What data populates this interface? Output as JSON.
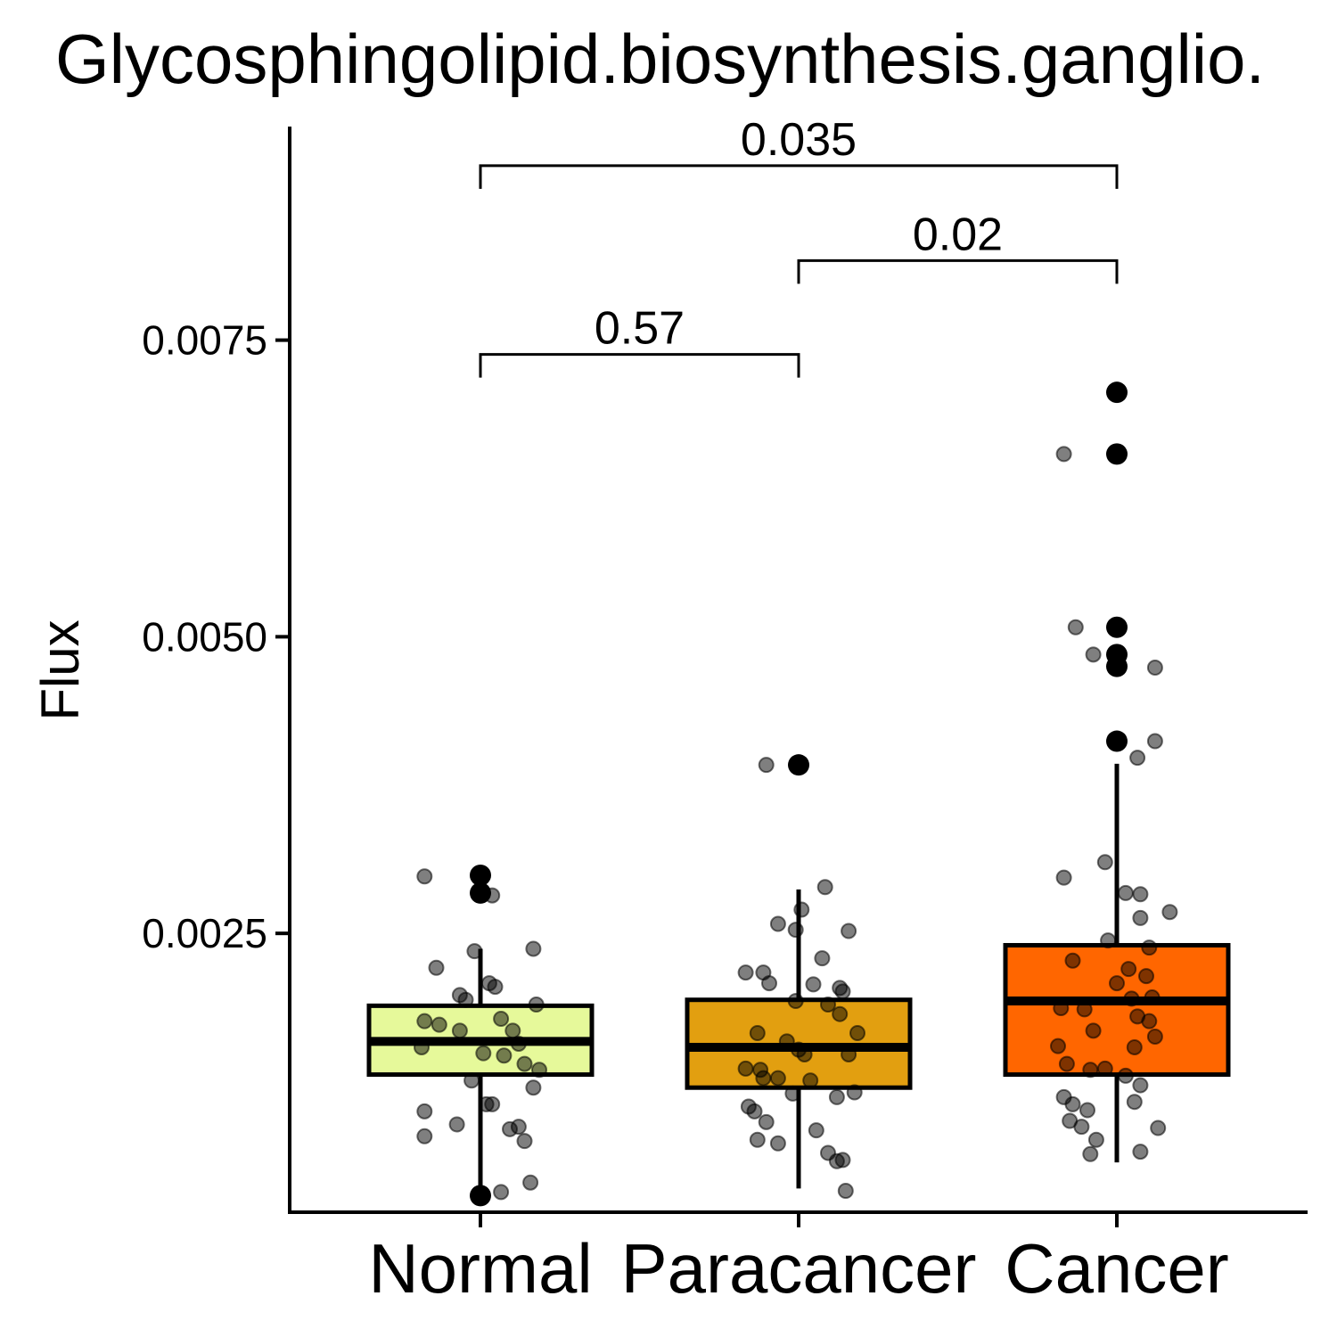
{
  "chart_data": {
    "type": "box",
    "title": "Glycosphingolipid.biosynthesis.ganglio.",
    "ylabel": "Flux",
    "xlabel": "",
    "ylim": [
      0.00015,
      0.0093
    ],
    "yticks": [
      {
        "value": 0.0025,
        "label": "0.0025"
      },
      {
        "value": 0.005,
        "label": "0.0050"
      },
      {
        "value": 0.0075,
        "label": "0.0075"
      }
    ],
    "categories": [
      "Normal",
      "Paracancer",
      "Cancer"
    ],
    "colors": {
      "Normal": "#e6f99a",
      "Paracancer": "#e29f10",
      "Cancer": "#ff6600"
    },
    "boxes": [
      {
        "name": "Normal",
        "q1": 0.00131,
        "median": 0.00159,
        "q3": 0.00189,
        "whisker_low": 0.00033,
        "whisker_high": 0.00237,
        "outliers": [
          0.00299,
          0.00284,
          0.00029
        ],
        "points": [
          [
            -0.19,
            0.00298
          ],
          [
            0.04,
            0.00282
          ],
          [
            0.18,
            0.00237
          ],
          [
            -0.02,
            0.00235
          ],
          [
            -0.15,
            0.00221
          ],
          [
            0.03,
            0.00208
          ],
          [
            0.05,
            0.00205
          ],
          [
            -0.07,
            0.00198
          ],
          [
            -0.05,
            0.00194
          ],
          [
            0.19,
            0.0019
          ],
          [
            -0.19,
            0.00176
          ],
          [
            -0.14,
            0.00173
          ],
          [
            0.07,
            0.00178
          ],
          [
            0.11,
            0.00168
          ],
          [
            -0.07,
            0.00168
          ],
          [
            -0.2,
            0.00154
          ],
          [
            0.13,
            0.00157
          ],
          [
            0.01,
            0.00149
          ],
          [
            0.08,
            0.00147
          ],
          [
            0.15,
            0.0014
          ],
          [
            0.2,
            0.00135
          ],
          [
            -0.03,
            0.00126
          ],
          [
            0.18,
            0.0012
          ],
          [
            0.02,
            0.00106
          ],
          [
            0.04,
            0.00106
          ],
          [
            -0.19,
            0.001
          ],
          [
            -0.19,
            0.00079
          ],
          [
            -0.08,
            0.00089
          ],
          [
            0.1,
            0.00085
          ],
          [
            0.13,
            0.00087
          ],
          [
            0.15,
            0.00075
          ],
          [
            0.17,
            0.0004
          ],
          [
            0.07,
            0.00032
          ]
        ]
      },
      {
        "name": "Paracancer",
        "q1": 0.0012,
        "median": 0.00154,
        "q3": 0.00194,
        "whisker_low": 0.00035,
        "whisker_high": 0.00287,
        "outliers": [
          0.00392
        ],
        "points": [
          [
            -0.11,
            0.00392
          ],
          [
            0.09,
            0.00289
          ],
          [
            0.01,
            0.0027
          ],
          [
            -0.07,
            0.00258
          ],
          [
            -0.01,
            0.00253
          ],
          [
            0.17,
            0.00252
          ],
          [
            0.08,
            0.00229
          ],
          [
            -0.18,
            0.00217
          ],
          [
            -0.12,
            0.00217
          ],
          [
            -0.1,
            0.00208
          ],
          [
            0.05,
            0.00207
          ],
          [
            0.14,
            0.00204
          ],
          [
            0.15,
            0.00201
          ],
          [
            -0.01,
            0.00193
          ],
          [
            0.1,
            0.0019
          ],
          [
            0.14,
            0.00182
          ],
          [
            -0.14,
            0.00166
          ],
          [
            0.2,
            0.00166
          ],
          [
            -0.04,
            0.00159
          ],
          [
            0.0,
            0.00152
          ],
          [
            0.02,
            0.00148
          ],
          [
            0.17,
            0.00148
          ],
          [
            -0.18,
            0.00136
          ],
          [
            -0.13,
            0.00135
          ],
          [
            -0.12,
            0.00128
          ],
          [
            -0.07,
            0.00128
          ],
          [
            0.04,
            0.00126
          ],
          [
            -0.02,
            0.00115
          ],
          [
            0.13,
            0.00112
          ],
          [
            0.19,
            0.00116
          ],
          [
            -0.17,
            0.00104
          ],
          [
            -0.15,
            0.001
          ],
          [
            -0.11,
            0.00091
          ],
          [
            0.06,
            0.00084
          ],
          [
            -0.14,
            0.00076
          ],
          [
            -0.07,
            0.00073
          ],
          [
            0.1,
            0.00065
          ],
          [
            0.13,
            0.00058
          ],
          [
            0.15,
            0.00059
          ],
          [
            0.16,
            0.00033
          ]
        ]
      },
      {
        "name": "Cancer",
        "q1": 0.00131,
        "median": 0.00193,
        "q3": 0.0024,
        "whisker_low": 0.00057,
        "whisker_high": 0.00393,
        "outliers": [
          0.00706,
          0.00654,
          0.00508,
          0.00485,
          0.00475,
          0.00412
        ],
        "points": [
          [
            -0.18,
            0.00654
          ],
          [
            -0.14,
            0.00508
          ],
          [
            -0.08,
            0.00485
          ],
          [
            0.13,
            0.00474
          ],
          [
            0.13,
            0.00412
          ],
          [
            0.07,
            0.00398
          ],
          [
            -0.04,
            0.0031
          ],
          [
            -0.18,
            0.00297
          ],
          [
            0.03,
            0.00284
          ],
          [
            0.08,
            0.00283
          ],
          [
            0.18,
            0.00268
          ],
          [
            0.08,
            0.00263
          ],
          [
            -0.03,
            0.00244
          ],
          [
            0.11,
            0.00238
          ],
          [
            -0.15,
            0.00227
          ],
          [
            0.04,
            0.0022
          ],
          [
            0.1,
            0.00214
          ],
          [
            0.0,
            0.00208
          ],
          [
            0.12,
            0.00196
          ],
          [
            0.05,
            0.00195
          ],
          [
            -0.19,
            0.00187
          ],
          [
            -0.11,
            0.00186
          ],
          [
            0.07,
            0.0018
          ],
          [
            0.11,
            0.00176
          ],
          [
            -0.08,
            0.00168
          ],
          [
            0.13,
            0.00163
          ],
          [
            -0.2,
            0.00155
          ],
          [
            0.06,
            0.00154
          ],
          [
            -0.17,
            0.0014
          ],
          [
            -0.09,
            0.00135
          ],
          [
            -0.04,
            0.00136
          ],
          [
            0.03,
            0.0013
          ],
          [
            0.08,
            0.00122
          ],
          [
            -0.18,
            0.00112
          ],
          [
            -0.15,
            0.00106
          ],
          [
            -0.1,
            0.00101
          ],
          [
            0.06,
            0.00108
          ],
          [
            -0.16,
            0.00092
          ],
          [
            -0.12,
            0.00087
          ],
          [
            0.14,
            0.00086
          ],
          [
            -0.07,
            0.00076
          ],
          [
            0.08,
            0.00066
          ],
          [
            -0.09,
            0.00064
          ]
        ]
      }
    ],
    "comparisons": [
      {
        "from": "Normal",
        "to": "Paracancer",
        "label": "0.57",
        "y": 0.00738
      },
      {
        "from": "Paracancer",
        "to": "Cancer",
        "label": "0.02",
        "y": 0.00817
      },
      {
        "from": "Normal",
        "to": "Cancer",
        "label": "0.035",
        "y": 0.00897
      }
    ],
    "legend": "none",
    "grid": false
  }
}
